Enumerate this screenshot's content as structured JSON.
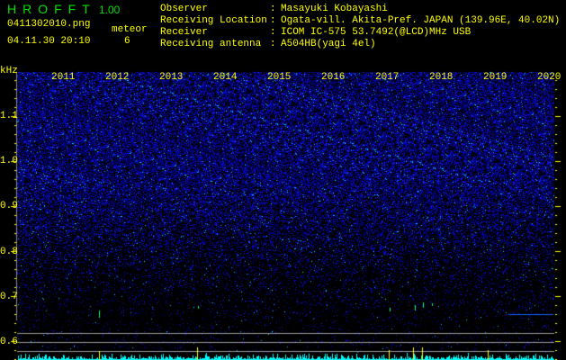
{
  "header": {
    "app_title": "HROFFT",
    "version": "1.00",
    "filename": "0411302010.png",
    "datetime": "04.11.30 20:10",
    "meteor_label": "meteor",
    "meteor_count": "6"
  },
  "station": [
    {
      "label": "Observer",
      "value": "Masayuki Kobayashi"
    },
    {
      "label": "Receiving Location",
      "value": "Ogata-vill. Akita-Pref. JAPAN (139.96E, 40.02N)"
    },
    {
      "label": "Receiver",
      "value": "ICOM IC-575 53.7492(@LCD)MHz USB"
    },
    {
      "label": "Receiving antenna",
      "value": "A504HB(yagi 4el)"
    }
  ],
  "spectrogram": {
    "y_unit": "kHz",
    "y_ticks": [
      "1.1",
      "1.0",
      "0.9",
      "0.8",
      "0.7",
      "0.6"
    ],
    "time_labels": [
      "2011",
      "2012",
      "2013",
      "2014",
      "2015",
      "2016",
      "2017",
      "2018",
      "2019",
      "2020"
    ],
    "colors": {
      "background": "#000000",
      "noise": "#1a1aff",
      "signal": "#00ffff",
      "strong": "#ffff00",
      "label": "#ffff00",
      "title": "#00e000"
    }
  }
}
